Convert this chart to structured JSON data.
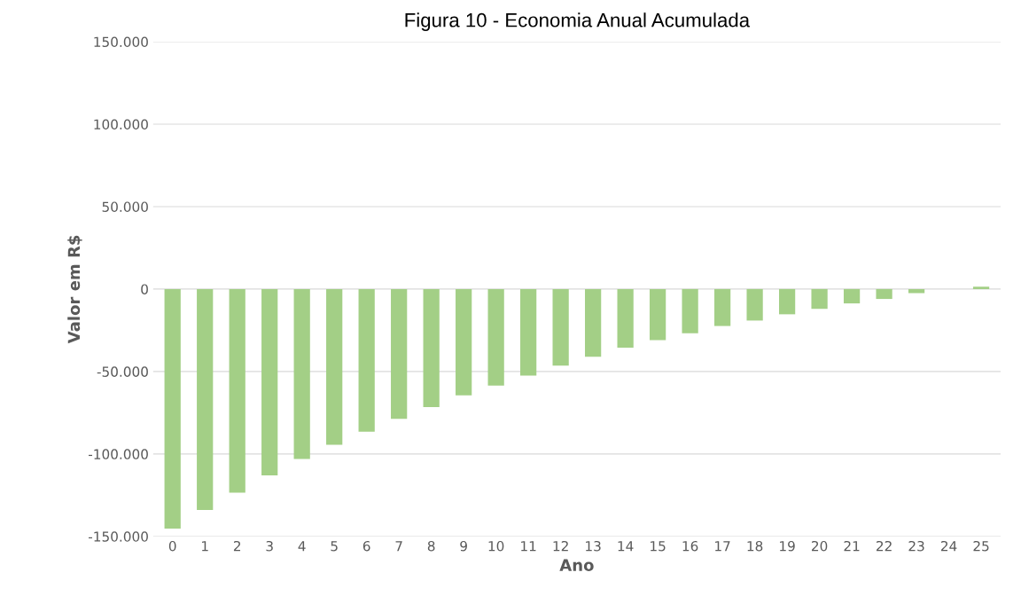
{
  "chart_data": {
    "type": "bar",
    "title": "Figura 10 - Economia Anual Acumulada",
    "xlabel": "Ano",
    "ylabel": "Valor em R$",
    "categories": [
      "0",
      "1",
      "2",
      "3",
      "4",
      "5",
      "6",
      "7",
      "8",
      "9",
      "10",
      "11",
      "12",
      "13",
      "14",
      "15",
      "16",
      "17",
      "18",
      "19",
      "20",
      "21",
      "22",
      "23",
      "24",
      "25"
    ],
    "values": [
      -145300,
      -134000,
      -123500,
      -113000,
      -103000,
      -94500,
      -86500,
      -78700,
      -71600,
      -64500,
      -58500,
      -52500,
      -46500,
      -41000,
      -35500,
      -31000,
      -26800,
      -22400,
      -19100,
      -15300,
      -12000,
      -8700,
      -6000,
      -2500,
      0,
      1500
    ],
    "color": "#a3cf86",
    "ylim": [
      -150000,
      150000
    ],
    "yticks": [
      {
        "value": -150000,
        "label": "-150.000"
      },
      {
        "value": -100000,
        "label": "-100.000"
      },
      {
        "value": -50000,
        "label": "-50.000"
      },
      {
        "value": 0,
        "label": "0"
      },
      {
        "value": 50000,
        "label": "50.000"
      },
      {
        "value": 100000,
        "label": "100.000"
      },
      {
        "value": 150000,
        "label": "150.000"
      }
    ],
    "grid": "y"
  }
}
